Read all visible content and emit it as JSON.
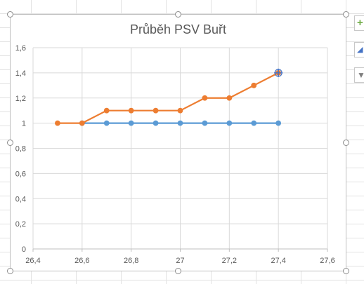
{
  "chart_data": {
    "type": "scatter",
    "title": "Průběh PSV Buřt",
    "xlim": [
      26.4,
      27.6
    ],
    "ylim": [
      0,
      1.6
    ],
    "x_ticks": [
      "26,4",
      "26,6",
      "26,8",
      "27",
      "27,2",
      "27,4",
      "27,6"
    ],
    "y_ticks": [
      "0",
      "0,2",
      "0,4",
      "0,6",
      "0,8",
      "1",
      "1,2",
      "1,4",
      "1,6"
    ],
    "grid": true,
    "legend": "none",
    "series": [
      {
        "color": "#5b9bd5",
        "x": [
          26.6,
          26.7,
          26.8,
          26.9,
          27.0,
          27.1,
          27.2,
          27.3,
          27.4
        ],
        "y": [
          1,
          1,
          1,
          1,
          1,
          1,
          1,
          1,
          1
        ]
      },
      {
        "color": "#ed7d31",
        "x": [
          26.5,
          26.6,
          26.7,
          26.8,
          26.9,
          27.0,
          27.1,
          27.2,
          27.3,
          27.4
        ],
        "y": [
          1,
          1,
          1.1,
          1.1,
          1.1,
          1.1,
          1.2,
          1.2,
          1.3,
          1.4
        ]
      }
    ]
  },
  "chart_tools": [
    {
      "icon": "plus-icon",
      "glyph": "+",
      "color": "#70ad47"
    },
    {
      "icon": "brush-icon",
      "glyph": "◢",
      "color": "#4472c4"
    },
    {
      "icon": "filter-icon",
      "glyph": "▼",
      "color": "#7f7f7f"
    }
  ]
}
